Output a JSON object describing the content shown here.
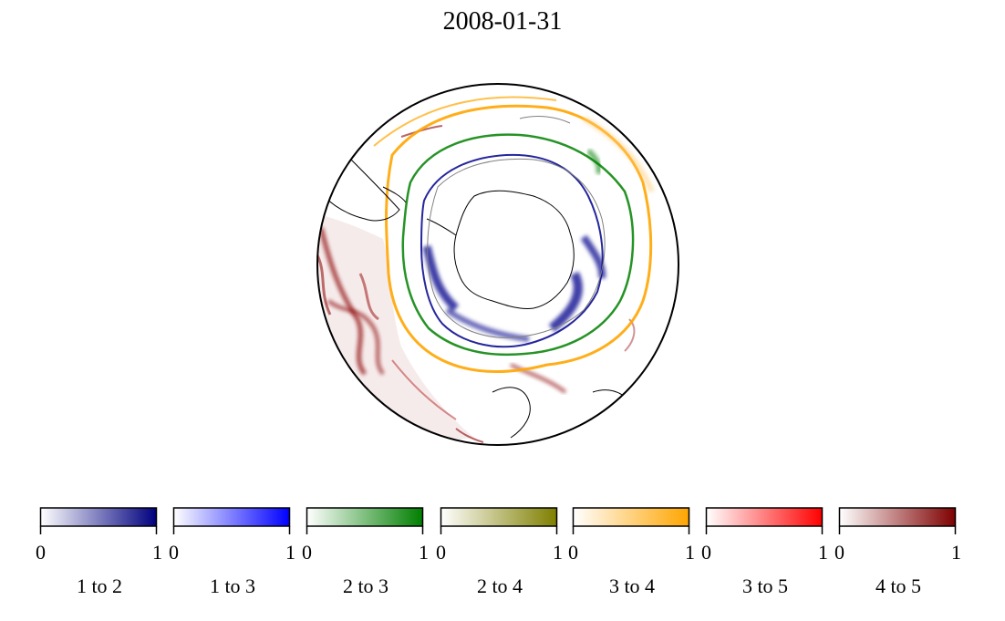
{
  "title": "2008-01-31",
  "colorbars": [
    {
      "label": "1 to 2",
      "min": "0",
      "max": "1",
      "color": "#00007f"
    },
    {
      "label": "1 to 3",
      "min": "0",
      "max": "1",
      "color": "#0000ff"
    },
    {
      "label": "2 to 3",
      "min": "0",
      "max": "1",
      "color": "#007f00"
    },
    {
      "label": "2 to 4",
      "min": "0",
      "max": "1",
      "color": "#7f7f00"
    },
    {
      "label": "3 to 4",
      "min": "0",
      "max": "1",
      "color": "#ffa500"
    },
    {
      "label": "3 to 5",
      "min": "0",
      "max": "1",
      "color": "#ff0000"
    },
    {
      "label": "4 to 5",
      "min": "0",
      "max": "1",
      "color": "#7f0000"
    }
  ],
  "map": {
    "projection": "south-polar-stereographic",
    "boundary_color": "#000000",
    "land_outline_color": "#000000",
    "ice_edge_color": "#808080"
  }
}
